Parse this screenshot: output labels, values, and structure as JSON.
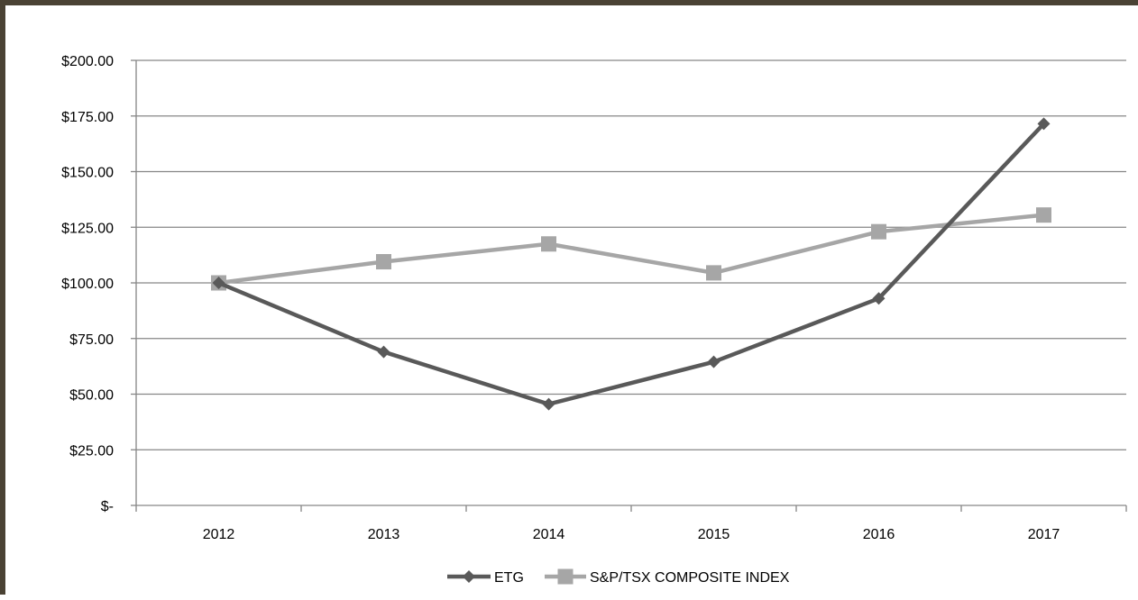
{
  "chart_data": {
    "type": "line",
    "title": "",
    "xlabel": "",
    "ylabel": "",
    "categories": [
      "2012",
      "2013",
      "2014",
      "2015",
      "2016",
      "2017"
    ],
    "ylim": [
      0,
      200
    ],
    "y_ticks": [
      0,
      25,
      50,
      75,
      100,
      125,
      150,
      175,
      200
    ],
    "y_tick_labels": [
      "$-",
      "$25.00",
      "$50.00",
      "$75.00",
      "$100.00",
      "$125.00",
      "$150.00",
      "$175.00",
      "$200.00"
    ],
    "grid": true,
    "legend_position": "bottom",
    "series": [
      {
        "name": "ETG",
        "values": [
          100,
          69,
          45.5,
          64.5,
          93,
          171.5
        ],
        "color": "#595959",
        "marker": "diamond"
      },
      {
        "name": "S&P/TSX COMPOSITE INDEX",
        "values": [
          100,
          109.5,
          117.5,
          104.5,
          123,
          130.5
        ],
        "color": "#a6a6a6",
        "marker": "square"
      }
    ]
  }
}
